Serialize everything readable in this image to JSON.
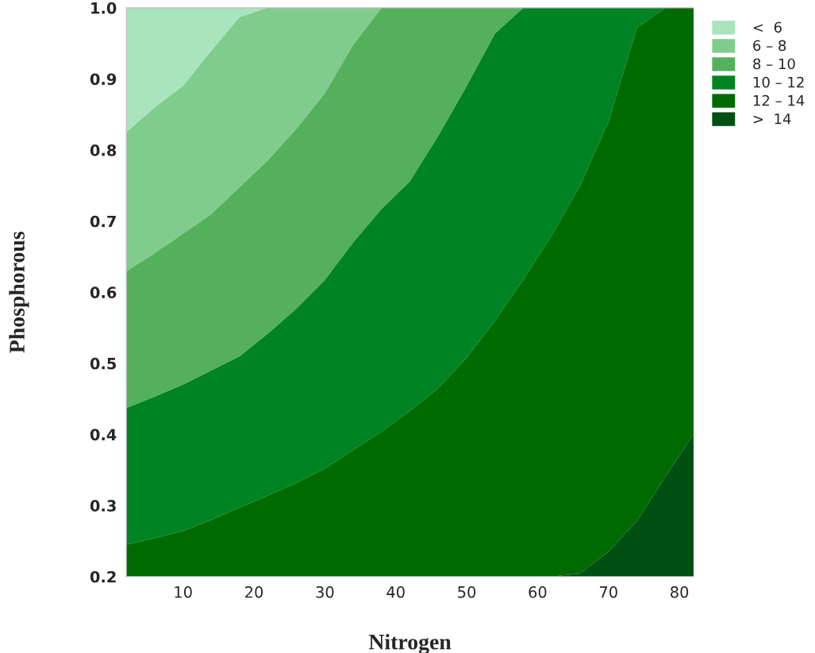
{
  "chart_data": {
    "type": "area",
    "xlabel": "Nitrogen",
    "ylabel": "Phosphorous",
    "xlim": [
      2,
      82
    ],
    "ylim": [
      0.2,
      1.0
    ],
    "xticks": [
      10,
      20,
      30,
      40,
      50,
      60,
      70,
      80
    ],
    "yticks": [
      0.2,
      0.3,
      0.4,
      0.5,
      0.6,
      0.7,
      0.8,
      0.9,
      {
        "value": 1.0,
        "label": "1.0"
      }
    ],
    "grid": false,
    "legend": "top right",
    "x": [
      2,
      6,
      10,
      14,
      18,
      22,
      26,
      30,
      34,
      38,
      42,
      46,
      50,
      54,
      58,
      62,
      66,
      70,
      74,
      78,
      82
    ],
    "series": [
      {
        "name": "<  6",
        "color": "#a8e4bc",
        "values": [
          1,
          1,
          1,
          1,
          1,
          1,
          1,
          1,
          1,
          1,
          1,
          1,
          1,
          1,
          1,
          1,
          1,
          1,
          1,
          1,
          1
        ]
      },
      {
        "name": "6 – 8",
        "color": "#80cc8c",
        "values": [
          0.825,
          0.86,
          0.89,
          0.94,
          0.987,
          1,
          1,
          1,
          1,
          1,
          1,
          1,
          1,
          1,
          1,
          1,
          1,
          1,
          1,
          1,
          1
        ]
      },
      {
        "name": "8 – 10",
        "color": "#55b05c",
        "values": [
          0.629,
          0.655,
          0.682,
          0.71,
          0.748,
          0.786,
          0.83,
          0.88,
          0.948,
          1,
          1,
          1,
          1,
          1,
          1,
          1,
          1,
          1,
          1,
          1,
          1
        ]
      },
      {
        "name": "10 – 12",
        "color": "#008323",
        "values": [
          0.437,
          0.453,
          0.47,
          0.49,
          0.51,
          0.542,
          0.577,
          0.617,
          0.67,
          0.717,
          0.756,
          0.82,
          0.89,
          0.964,
          1,
          1,
          1,
          1,
          1,
          1,
          1
        ]
      },
      {
        "name": "12 – 14",
        "color": "#006b00",
        "values": [
          0.245,
          0.254,
          0.264,
          0.28,
          0.297,
          0.314,
          0.332,
          0.352,
          0.378,
          0.404,
          0.433,
          0.465,
          0.508,
          0.56,
          0.618,
          0.68,
          0.75,
          0.84,
          0.972,
          1,
          1
        ]
      },
      {
        "name": ">  14",
        "color": "#004f13",
        "values": [
          0.2,
          0.2,
          0.2,
          0.2,
          0.2,
          0.2,
          0.2,
          0.2,
          0.2,
          0.2,
          0.2,
          0.2,
          0.2,
          0.2,
          0.2,
          0.2,
          0.204,
          0.235,
          0.278,
          0.34,
          0.4
        ]
      }
    ]
  }
}
